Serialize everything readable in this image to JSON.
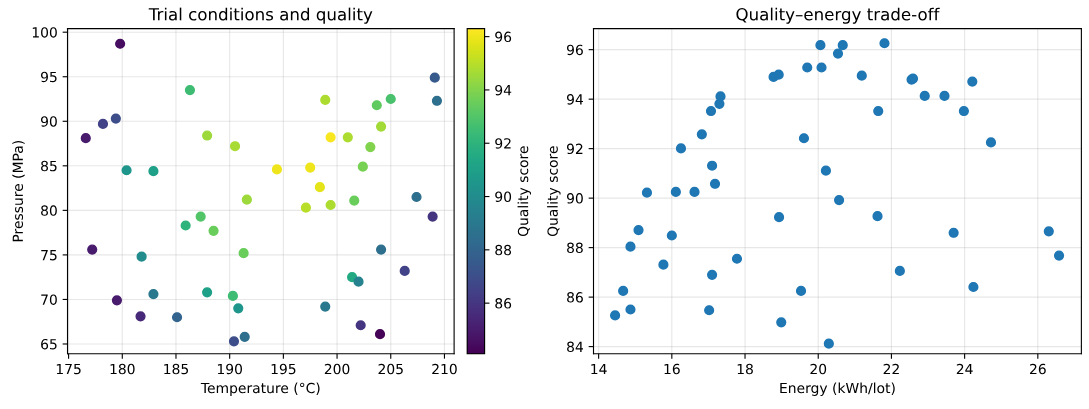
{
  "chart_data": [
    {
      "type": "scatter",
      "title": "Trial conditions and quality",
      "xlabel": "Temperature (°C)",
      "ylabel": "Pressure (MPa)",
      "clabel": "Quality score",
      "x": [
        179.8,
        176.6,
        178.2,
        179.4,
        186.3,
        180.4,
        182.9,
        177.2,
        181.8,
        185.9,
        187.3,
        188.5,
        187.9,
        190.5,
        191.6,
        191.3,
        182.9,
        179.5,
        181.7,
        185.1,
        187.9,
        190.3,
        190.8,
        190.4,
        191.4,
        194.4,
        197.5,
        198.4,
        197.1,
        199.4,
        198.9,
        199.4,
        201.0,
        201.6,
        202.4,
        203.1,
        203.7,
        204.1,
        205.0,
        201.4,
        202.0,
        204.1,
        207.4,
        206.3,
        198.9,
        202.2,
        204.0,
        209.1,
        209.3,
        208.9
      ],
      "values": [
        98.7,
        88.1,
        89.7,
        90.3,
        93.5,
        84.5,
        84.4,
        75.6,
        74.8,
        78.3,
        79.3,
        77.7,
        88.4,
        87.2,
        81.2,
        75.2,
        70.6,
        69.9,
        68.1,
        68.0,
        70.8,
        70.4,
        69.0,
        65.3,
        65.8,
        84.6,
        84.8,
        82.6,
        80.3,
        80.6,
        92.4,
        88.2,
        88.2,
        81.1,
        84.9,
        87.1,
        91.8,
        89.4,
        92.5,
        72.5,
        72.0,
        75.6,
        81.5,
        73.2,
        69.2,
        67.1,
        66.1,
        94.9,
        92.3,
        79.3
      ],
      "cvalues": [
        84.5,
        85,
        86.5,
        87,
        92.5,
        90.5,
        91,
        85,
        90,
        92,
        93,
        93.5,
        94.5,
        94.7,
        94.5,
        93.5,
        89,
        85,
        85.5,
        88,
        91,
        92.5,
        90.5,
        87,
        88.5,
        96,
        96,
        95.8,
        95,
        94.8,
        94.8,
        96.2,
        94.8,
        93.5,
        93.8,
        94,
        93.3,
        94.6,
        92.8,
        91.5,
        89.5,
        88.5,
        88.5,
        86.5,
        89,
        86,
        84.2,
        87.5,
        88.5,
        86
      ],
      "clim": [
        84.1,
        96.3
      ],
      "cticks": [
        86,
        88,
        90,
        92,
        94,
        96
      ],
      "xlim": [
        174.9,
        210.9
      ],
      "xticks": [
        175,
        180,
        185,
        190,
        195,
        200,
        205,
        210
      ],
      "ylim": [
        63.9,
        100.4
      ],
      "yticks": [
        65,
        70,
        75,
        80,
        85,
        90,
        95,
        100
      ],
      "grid": true,
      "marker": "circle"
    },
    {
      "type": "scatter",
      "title": "Quality–energy trade-off",
      "xlabel": "Energy (kWh/lot)",
      "ylabel": "Quality score",
      "x": [
        14.45,
        14.67,
        14.87,
        14.87,
        15.09,
        15.32,
        15.77,
        16.0,
        16.11,
        16.25,
        16.62,
        16.82,
        17.02,
        17.07,
        17.1,
        17.1,
        17.18,
        17.3,
        17.33,
        17.78,
        18.78,
        18.92,
        18.93,
        18.99,
        19.53,
        19.61,
        19.7,
        20.06,
        20.09,
        20.21,
        20.29,
        20.54,
        20.57,
        20.67,
        21.19,
        21.62,
        21.64,
        21.81,
        22.23,
        22.55,
        22.59,
        22.91,
        23.45,
        23.7,
        23.98,
        24.21,
        24.24,
        24.72,
        26.3,
        26.58
      ],
      "series": [
        {
          "color": "#1f77b4",
          "values": [
            85.26,
            86.25,
            85.5,
            88.04,
            88.71,
            90.22,
            87.31,
            88.49,
            90.25,
            92.01,
            90.25,
            92.58,
            85.47,
            93.52,
            91.31,
            86.9,
            90.58,
            93.81,
            94.11,
            87.55,
            94.9,
            94.99,
            89.23,
            84.98,
            86.25,
            92.42,
            95.28,
            96.18,
            95.28,
            91.11,
            84.12,
            95.84,
            89.92,
            96.18,
            94.95,
            89.27,
            93.52,
            96.26,
            87.06,
            94.79,
            94.83,
            94.13,
            94.13,
            88.6,
            93.52,
            94.71,
            86.41,
            92.25,
            88.66,
            87.68
          ]
        }
      ],
      "xlim": [
        13.86,
        27.19
      ],
      "xticks": [
        14,
        16,
        18,
        20,
        22,
        24,
        26
      ],
      "ylim": [
        83.71,
        96.85
      ],
      "yticks": [
        84,
        86,
        88,
        90,
        92,
        94,
        96
      ],
      "grid": true,
      "marker": "circle"
    }
  ]
}
